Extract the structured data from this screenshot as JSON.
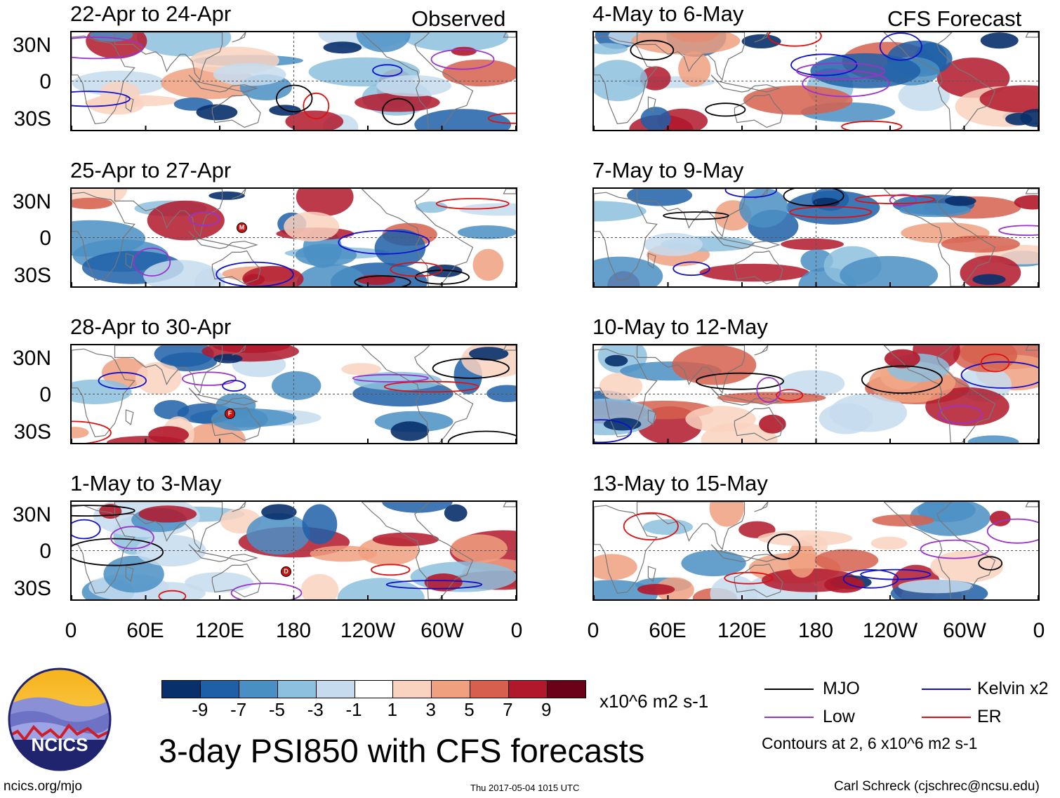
{
  "colors": {
    "mjo": "#000000",
    "low": "#9933cc",
    "kelvin": "#1010cc",
    "er": "#dd1111",
    "land": "#777777",
    "colorbar": [
      "#08306b",
      "#1f5fa8",
      "#4a8fc4",
      "#8dbfde",
      "#c6dcee",
      "#ffffff",
      "#f9d2c0",
      "#f0a07f",
      "#d6604d",
      "#b2182b",
      "#6b0019"
    ]
  },
  "panel_labels": {
    "observed": "Observed",
    "forecast": "CFS Forecast"
  },
  "panels_left": [
    {
      "title": "22-Apr to 24-Apr"
    },
    {
      "title": "25-Apr to 27-Apr"
    },
    {
      "title": "28-Apr to 30-Apr"
    },
    {
      "title": "1-May to 3-May"
    }
  ],
  "panels_right": [
    {
      "title": "4-May to 6-May"
    },
    {
      "title": "7-May to 9-May"
    },
    {
      "title": "10-May to 12-May"
    },
    {
      "title": "13-May to 15-May"
    }
  ],
  "y_ticks": [
    "30N",
    "0",
    "30S"
  ],
  "x_ticks": [
    "0",
    "60E",
    "120E",
    "180",
    "120W",
    "60W",
    "0"
  ],
  "colorbar": {
    "ticks": [
      "-9",
      "-7",
      "-5",
      "-3",
      "-1",
      "1",
      "3",
      "5",
      "7",
      "9"
    ],
    "units": "x10^6 m2 s-1"
  },
  "legend": {
    "mjo": "MJO",
    "low": "Low",
    "kelvin": "Kelvin x2",
    "er": "ER",
    "contours_note": "Contours at 2, 6 x10^6 m2 s-1"
  },
  "logo_text": "NCICS",
  "main_title": "3-day PSI850 with CFS forecasts",
  "footer": {
    "url": "ncics.org/mjo",
    "timestamp": "Thu 2017-05-04 1015 UTC",
    "author": "Carl Schreck (cjschrec@ncsu.edu)"
  },
  "storm_markers": [
    {
      "panel": 1,
      "label": "M"
    },
    {
      "panel": 2,
      "label": "F"
    },
    {
      "panel": 3,
      "label": "D"
    }
  ]
}
